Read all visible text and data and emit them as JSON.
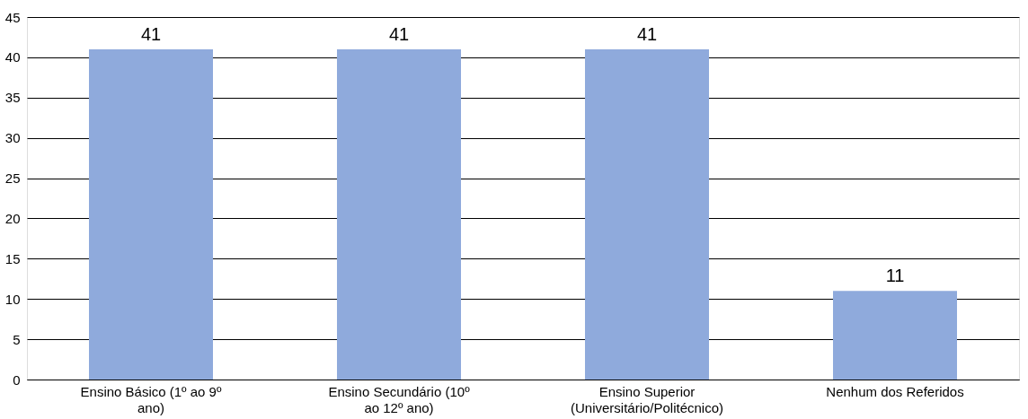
{
  "chart_data": {
    "type": "bar",
    "categories": [
      "Ensino Básico (1º ao 9º ano)",
      "Ensino Secundário (10º ao 12º ano)",
      "Ensino Superior (Universitário/Politécnico)",
      "Nenhum dos Referidos"
    ],
    "values": [
      41,
      41,
      41,
      11
    ],
    "color": "#8faadc",
    "ylim": [
      0,
      45
    ],
    "yticks": [
      0,
      5,
      10,
      15,
      20,
      25,
      30,
      35,
      40,
      45
    ],
    "grid": "y",
    "data_labels": true
  }
}
